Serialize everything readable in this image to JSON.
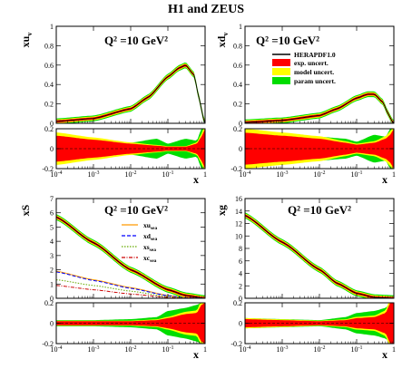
{
  "figure_title": "H1 and ZEUS",
  "colors": {
    "exp": "#ff0000",
    "model": "#ffff00",
    "param": "#00dd00",
    "central": "#000000",
    "uv_line": "#ff9900",
    "dv_line": "#0000ff",
    "s_line": "#66aa00",
    "c_line": "#cc0000"
  },
  "legend_main": {
    "central": "HERAPDF1.0",
    "exp": "exp. uncert.",
    "model": "model uncert.",
    "param": "param uncert."
  },
  "legend_sea": {
    "u_base": "xu",
    "u_sub": "sea",
    "d_base": "xd",
    "d_sub": "sea",
    "s_base": "xs",
    "s_sub": "sea",
    "c_base": "xc",
    "c_sub": "sea"
  },
  "chart_data": [
    {
      "type": "area",
      "panel": "xuv",
      "ylabel_base": "xu",
      "ylabel_sub": "v",
      "xlabel": "x",
      "q2_label": "Q² =10 GeV²",
      "xscale": "log",
      "xlim": [
        0.0001,
        1
      ],
      "ylim": [
        0,
        1
      ],
      "yticks": [
        "0",
        "0.2",
        "0.4",
        "0.6",
        "0.8",
        "1"
      ],
      "x": [
        0.0001,
        0.001,
        0.01,
        0.03,
        0.1,
        0.2,
        0.3,
        0.5,
        0.7,
        0.9,
        1
      ],
      "central": [
        0.02,
        0.05,
        0.15,
        0.27,
        0.48,
        0.57,
        0.6,
        0.5,
        0.25,
        0.05,
        0
      ],
      "ratio_ylim": [
        -0.2,
        0.2
      ],
      "ratio_yticks": [
        "-0.2",
        "0",
        "0.2"
      ],
      "ratio_x": [
        0.0001,
        0.001,
        0.01,
        0.05,
        0.1,
        0.3,
        0.6,
        0.8,
        1
      ],
      "ratio_exp": [
        0.13,
        0.09,
        0.05,
        0.03,
        0.02,
        0.02,
        0.05,
        0.12,
        0.2
      ],
      "ratio_param": [
        0.15,
        0.1,
        0.06,
        0.1,
        0.05,
        0.1,
        0.08,
        0.2,
        0.22
      ]
    },
    {
      "type": "area",
      "panel": "xdv",
      "ylabel_base": "xd",
      "ylabel_sub": "v",
      "xlabel": "x",
      "q2_label": "Q² =10 GeV²",
      "xscale": "log",
      "xlim": [
        0.0001,
        1
      ],
      "ylim": [
        0,
        1
      ],
      "yticks": [
        "0",
        "0.2",
        "0.4",
        "0.6",
        "0.8",
        "1"
      ],
      "x": [
        0.0001,
        0.001,
        0.01,
        0.03,
        0.1,
        0.2,
        0.3,
        0.5,
        0.7,
        0.9,
        1
      ],
      "central": [
        0.01,
        0.03,
        0.08,
        0.15,
        0.26,
        0.3,
        0.3,
        0.22,
        0.1,
        0.02,
        0
      ],
      "ratio_ylim": [
        -0.2,
        0.2
      ],
      "ratio_yticks": [
        "-0.2",
        "0",
        "0.2"
      ],
      "ratio_x": [
        0.0001,
        0.001,
        0.01,
        0.05,
        0.1,
        0.3,
        0.6,
        0.8,
        1
      ],
      "ratio_exp": [
        0.16,
        0.13,
        0.1,
        0.06,
        0.04,
        0.06,
        0.1,
        0.14,
        0.2
      ],
      "ratio_param": [
        0.18,
        0.16,
        0.12,
        0.1,
        0.07,
        0.14,
        0.12,
        0.2,
        0.22
      ]
    },
    {
      "type": "line",
      "panel": "xS",
      "ylabel_base": "xS",
      "ylabel_sub": "",
      "xlabel": "x",
      "q2_label": "Q² =10 GeV²",
      "xscale": "log",
      "xlim": [
        0.0001,
        1
      ],
      "ylim": [
        0,
        7
      ],
      "yticks": [
        "0",
        "1",
        "2",
        "3",
        "4",
        "5",
        "6",
        "7"
      ],
      "x": [
        0.0001,
        0.001,
        0.01,
        0.1,
        0.3,
        1
      ],
      "central": [
        5.7,
        3.9,
        2.0,
        0.6,
        0.2,
        0
      ],
      "series": [
        {
          "name": "xu_sea",
          "values": [
            1.9,
            1.3,
            0.75,
            0.2,
            0.05,
            0
          ]
        },
        {
          "name": "xd_sea",
          "values": [
            1.85,
            1.25,
            0.7,
            0.18,
            0.04,
            0
          ]
        },
        {
          "name": "xs_sea",
          "values": [
            1.3,
            0.9,
            0.5,
            0.12,
            0.02,
            0
          ]
        },
        {
          "name": "xc_sea",
          "values": [
            0.9,
            0.6,
            0.3,
            0.06,
            0.01,
            0
          ]
        }
      ],
      "ratio_ylim": [
        -0.2,
        0.2
      ],
      "ratio_yticks": [
        "-0.2",
        "0",
        "0.2"
      ],
      "ratio_x": [
        0.0001,
        0.001,
        0.01,
        0.05,
        0.1,
        0.3,
        0.6,
        0.8,
        1
      ],
      "ratio_exp": [
        0.02,
        0.02,
        0.02,
        0.03,
        0.05,
        0.09,
        0.1,
        0.18,
        0.2
      ],
      "ratio_param": [
        0.03,
        0.03,
        0.04,
        0.06,
        0.12,
        0.15,
        0.18,
        0.2,
        0.22
      ]
    },
    {
      "type": "line",
      "panel": "xg",
      "ylabel_base": "xg",
      "ylabel_sub": "",
      "xlabel": "x",
      "q2_label": "Q² =10 GeV²",
      "xscale": "log",
      "xlim": [
        0.0001,
        1
      ],
      "ylim": [
        0,
        16
      ],
      "yticks": [
        "0",
        "2",
        "4",
        "6",
        "8",
        "10",
        "12",
        "14",
        "16"
      ],
      "x": [
        0.0001,
        0.001,
        0.01,
        0.03,
        0.1,
        0.3,
        1
      ],
      "central": [
        13.3,
        9.0,
        4.6,
        2.4,
        0.8,
        0.15,
        0
      ],
      "ratio_ylim": [
        -0.2,
        0.2
      ],
      "ratio_yticks": [
        "-0.2",
        "0",
        "0.2"
      ],
      "ratio_x": [
        0.0001,
        0.001,
        0.01,
        0.05,
        0.1,
        0.3,
        0.6,
        0.8,
        1
      ],
      "ratio_exp": [
        0.04,
        0.03,
        0.02,
        0.03,
        0.05,
        0.06,
        0.1,
        0.2,
        0.22
      ],
      "ratio_param": [
        0.05,
        0.04,
        0.03,
        0.06,
        0.1,
        0.12,
        0.15,
        0.2,
        0.22
      ]
    }
  ]
}
